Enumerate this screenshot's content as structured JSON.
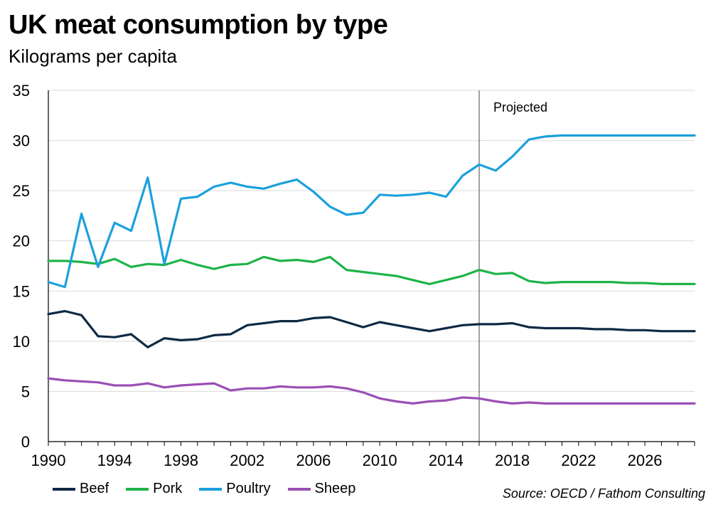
{
  "header": {
    "title": "UK meat consumption by type",
    "subtitle": "Kilograms per capita"
  },
  "source": "Source: OECD / Fathom Consulting",
  "chart_data": {
    "type": "line",
    "title": "UK meat consumption by type",
    "ylabel": "Kilograms per capita",
    "xlabel": "",
    "xlim": [
      1990,
      2029
    ],
    "ylim": [
      0,
      35
    ],
    "y_ticks": [
      0,
      5,
      10,
      15,
      20,
      25,
      30,
      35
    ],
    "x_ticks": [
      1990,
      1994,
      1998,
      2002,
      2006,
      2010,
      2014,
      2018,
      2022,
      2026
    ],
    "grid": "horizontal",
    "legend_position": "bottom-left",
    "annotations": [
      {
        "text": "Projected",
        "x": 2016
      }
    ],
    "x": [
      1990,
      1991,
      1992,
      1993,
      1994,
      1995,
      1996,
      1997,
      1998,
      1999,
      2000,
      2001,
      2002,
      2003,
      2004,
      2005,
      2006,
      2007,
      2008,
      2009,
      2010,
      2011,
      2012,
      2013,
      2014,
      2015,
      2016,
      2017,
      2018,
      2019,
      2020,
      2021,
      2022,
      2023,
      2024,
      2025,
      2026,
      2027,
      2028,
      2029
    ],
    "series": [
      {
        "name": "Beef",
        "color": "#0d2a45",
        "values": [
          12.7,
          13.0,
          12.6,
          10.5,
          10.4,
          10.7,
          9.4,
          10.3,
          10.1,
          10.2,
          10.6,
          10.7,
          11.6,
          11.8,
          12.0,
          12.0,
          12.3,
          12.4,
          11.9,
          11.4,
          11.9,
          11.6,
          11.3,
          11.0,
          11.3,
          11.6,
          11.7,
          11.7,
          11.8,
          11.4,
          11.3,
          11.3,
          11.3,
          11.2,
          11.2,
          11.1,
          11.1,
          11.0,
          11.0,
          11.0
        ]
      },
      {
        "name": "Pork",
        "color": "#1db34a",
        "values": [
          18.0,
          18.0,
          17.9,
          17.7,
          18.2,
          17.4,
          17.7,
          17.6,
          18.1,
          17.6,
          17.2,
          17.6,
          17.7,
          18.4,
          18.0,
          18.1,
          17.9,
          18.4,
          17.1,
          16.9,
          16.7,
          16.5,
          16.1,
          15.7,
          16.1,
          16.5,
          17.1,
          16.7,
          16.8,
          16.0,
          15.8,
          15.9,
          15.9,
          15.9,
          15.9,
          15.8,
          15.8,
          15.7,
          15.7,
          15.7
        ]
      },
      {
        "name": "Poultry",
        "color": "#1ca0dc",
        "values": [
          15.9,
          15.4,
          22.7,
          17.4,
          21.8,
          21.0,
          26.3,
          17.7,
          24.2,
          24.4,
          25.4,
          25.8,
          25.4,
          25.2,
          25.7,
          26.1,
          24.9,
          23.4,
          22.6,
          22.8,
          24.6,
          24.5,
          24.6,
          24.8,
          24.4,
          26.5,
          27.6,
          27.0,
          28.4,
          30.1,
          30.4,
          30.5,
          30.5,
          30.5,
          30.5,
          30.5,
          30.5,
          30.5,
          30.5,
          30.5
        ]
      },
      {
        "name": "Sheep",
        "color": "#9b4fb5",
        "values": [
          6.3,
          6.1,
          6.0,
          5.9,
          5.6,
          5.6,
          5.8,
          5.4,
          5.6,
          5.7,
          5.8,
          5.1,
          5.3,
          5.3,
          5.5,
          5.4,
          5.4,
          5.5,
          5.3,
          4.9,
          4.3,
          4.0,
          3.8,
          4.0,
          4.1,
          4.4,
          4.3,
          4.0,
          3.8,
          3.9,
          3.8,
          3.8,
          3.8,
          3.8,
          3.8,
          3.8,
          3.8,
          3.8,
          3.8,
          3.8
        ]
      }
    ]
  }
}
